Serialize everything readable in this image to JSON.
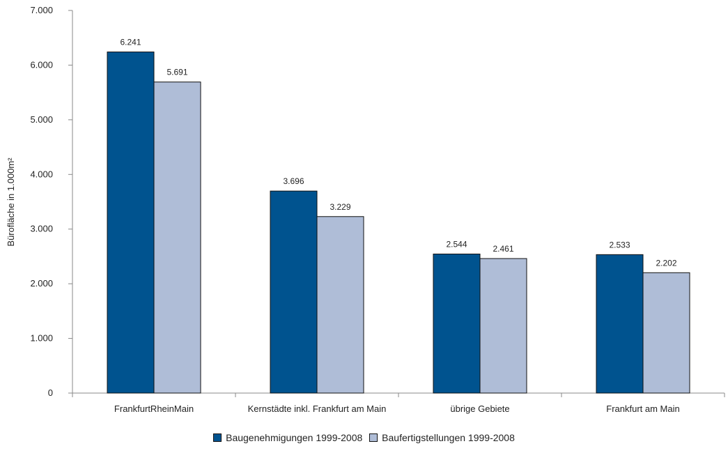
{
  "chart_data": {
    "type": "bar",
    "title": "",
    "xlabel": "",
    "ylabel": "Bürofläche in 1.000m²",
    "ylim": [
      0,
      7000
    ],
    "yticks": [
      0,
      1000,
      2000,
      3000,
      4000,
      5000,
      6000,
      7000
    ],
    "ytick_labels": [
      "0",
      "1.000",
      "2.000",
      "3.000",
      "4.000",
      "5.000",
      "6.000",
      "7.000"
    ],
    "categories": [
      "FrankfurtRheinMain",
      "Kernstädte inkl. Frankfurt am Main",
      "übrige Gebiete",
      "Frankfurt am Main"
    ],
    "series": [
      {
        "name": "Baugenehmigungen 1999-2008",
        "color": "#00538f",
        "values": [
          6241,
          3696,
          2544,
          2533
        ],
        "labels": [
          "6.241",
          "3.696",
          "2.544",
          "2.533"
        ]
      },
      {
        "name": "Baufertigstellungen 1999-2008",
        "color": "#afbdd7",
        "values": [
          5691,
          3229,
          2461,
          2202
        ],
        "labels": [
          "5.691",
          "3.229",
          "2.461",
          "2.202"
        ]
      }
    ],
    "grid": false,
    "legend": "bottom"
  }
}
